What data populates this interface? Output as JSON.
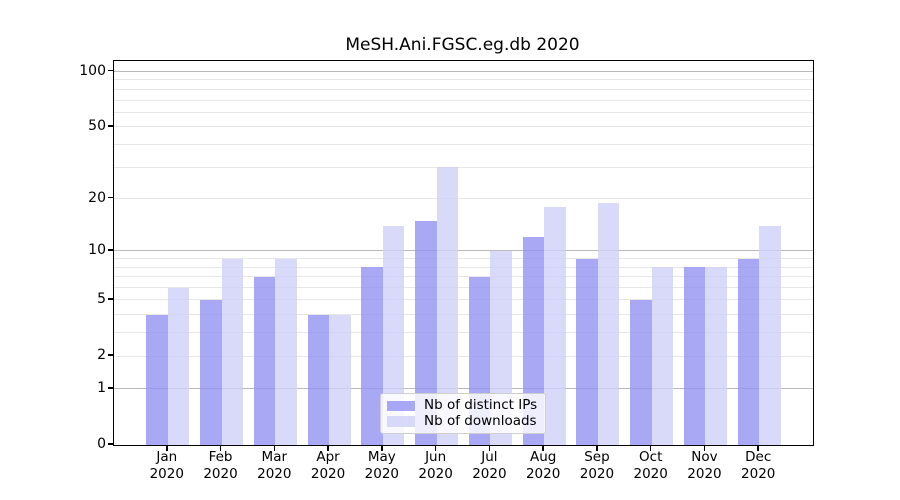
{
  "title": "MeSH.Ani.FGSC.eg.db 2020",
  "chart_data": {
    "type": "bar",
    "title": "MeSH.Ani.FGSC.eg.db 2020",
    "categories": [
      "Jan 2020",
      "Feb 2020",
      "Mar 2020",
      "Apr 2020",
      "May 2020",
      "Jun 2020",
      "Jul 2020",
      "Aug 2020",
      "Sep 2020",
      "Oct 2020",
      "Nov 2020",
      "Dec 2020"
    ],
    "x_tick_month": [
      "Jan",
      "Feb",
      "Mar",
      "Apr",
      "May",
      "Jun",
      "Jul",
      "Aug",
      "Sep",
      "Oct",
      "Nov",
      "Dec"
    ],
    "x_tick_year": "2020",
    "series": [
      {
        "name": "Nb of distinct IPs",
        "color": "#9292f2",
        "alpha": 0.8,
        "values": [
          4,
          5,
          7,
          4,
          8,
          15,
          7,
          12,
          9,
          5,
          8,
          9
        ]
      },
      {
        "name": "Nb of downloads",
        "color": "#cfcff7",
        "alpha": 0.8,
        "values": [
          6,
          9,
          9,
          4,
          14,
          30,
          10,
          18,
          19,
          8,
          8,
          14
        ]
      }
    ],
    "xlabel": "",
    "ylabel": "",
    "yscale": "log10(1+x)",
    "ylim": [
      0,
      114
    ],
    "yticks": [
      0,
      1,
      2,
      5,
      10,
      20,
      50,
      100
    ],
    "gridlines_minor": [
      2,
      3,
      4,
      5,
      6,
      7,
      8,
      9,
      20,
      30,
      40,
      50,
      60,
      70,
      80,
      90
    ],
    "gridlines_major": [
      1,
      10,
      100
    ],
    "grid": true,
    "legend_position": "inside-bottom-center"
  },
  "colors": {
    "bar_distinct_ips": "#9292f2",
    "bar_downloads": "#cfcff7",
    "grid_major": "#bababa",
    "grid_minor": "#e7e7e7",
    "axis": "#000000",
    "background": "#ffffff"
  }
}
